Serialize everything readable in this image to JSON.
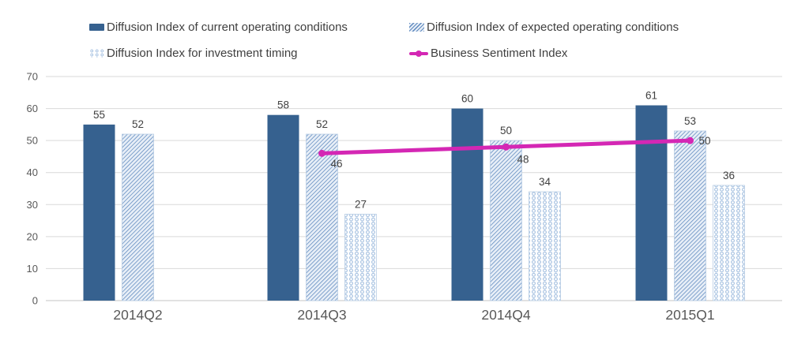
{
  "chart_data": {
    "type": "bar",
    "title": "",
    "categories": [
      "2014Q2",
      "2014Q3",
      "2014Q4",
      "2015Q1"
    ],
    "series": [
      {
        "name": "Diffusion Index of current operating conditions",
        "style": "solid",
        "color": "#36618F",
        "values": [
          55,
          58,
          60,
          61
        ]
      },
      {
        "name": "Diffusion Index of expected operating conditions",
        "style": "diagonal-hatch",
        "color": "#5E89BE",
        "values": [
          52,
          52,
          50,
          53
        ]
      },
      {
        "name": "Diffusion Index for investment timing",
        "style": "circle-pattern",
        "color": "#A3BFE0",
        "values": [
          null,
          27,
          34,
          36
        ]
      }
    ],
    "line_series": {
      "name": "Business Sentiment Index",
      "type": "line",
      "color": "#D427B4",
      "values": [
        null,
        46,
        48,
        50
      ]
    },
    "y_axis": {
      "min": 0,
      "max": 70,
      "tick_step": 10,
      "ticks": [
        0,
        10,
        20,
        30,
        40,
        50,
        60,
        70
      ]
    },
    "grid": true,
    "legend_position": "top",
    "colors": {
      "gridline": "#D9D9D9",
      "baseline": "#C6C6C6",
      "tick_label": "#595959",
      "category_label": "#595959",
      "data_label": "#404040",
      "hatch_bg": "#E7EEF7",
      "pattern_bar_border": "#B7CCE4"
    }
  }
}
